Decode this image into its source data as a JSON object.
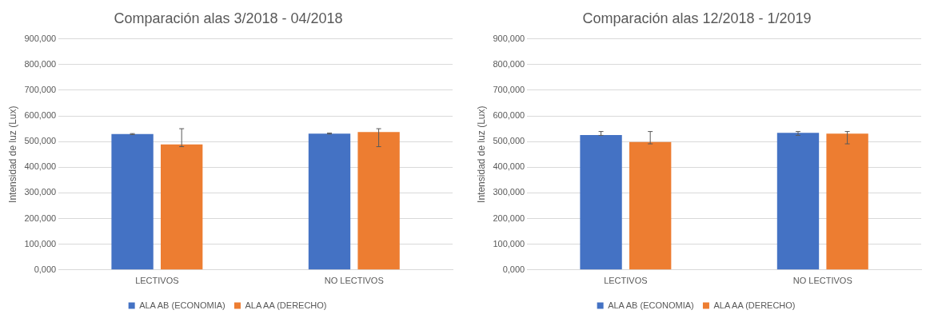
{
  "chart_data": [
    {
      "type": "bar",
      "title": "Comparación alas 3/2018 - 04/2018",
      "ylabel": "Intensidad de luz (Lux)",
      "categories": [
        "LECTIVOS",
        "NO LECTIVOS"
      ],
      "series": [
        {
          "name": "ALA AB (ECONOMIA)",
          "color": "#4472c4",
          "values": [
            529,
            531
          ],
          "errors": [
            2,
            2
          ]
        },
        {
          "name": "ALA AA (DERECHO)",
          "color": "#ed7d31",
          "values": [
            489,
            537
          ],
          "errors": [
            [
              480,
              550
            ],
            [
              480,
              550
            ]
          ]
        }
      ],
      "ylim": [
        0,
        900
      ],
      "yticks": [
        {
          "value": 0,
          "label": "0,000"
        },
        {
          "value": 100,
          "label": "100,000"
        },
        {
          "value": 200,
          "label": "200,000"
        },
        {
          "value": 300,
          "label": "300,000"
        },
        {
          "value": 400,
          "label": "400,000"
        },
        {
          "value": 500,
          "label": "500,000"
        },
        {
          "value": 600,
          "label": "600,000"
        },
        {
          "value": 700,
          "label": "700,000"
        },
        {
          "value": 800,
          "label": "800,000"
        },
        {
          "value": 900,
          "label": "900,000"
        }
      ],
      "grid": "y",
      "legend": "bottom"
    },
    {
      "type": "bar",
      "title": "Comparación alas 12/2018 - 1/2019",
      "ylabel": "Intensidad de luz (Lux)",
      "categories": [
        "LECTIVOS",
        "NO LECTIVOS"
      ],
      "series": [
        {
          "name": "ALA AB (ECONOMIA)",
          "color": "#4472c4",
          "values": [
            525,
            534
          ],
          "errors": [
            [
              524,
              539
            ],
            [
              524,
              539
            ]
          ]
        },
        {
          "name": "ALA AA (DERECHO)",
          "color": "#ed7d31",
          "values": [
            498,
            531
          ],
          "errors": [
            [
              491,
              539
            ],
            [
              491,
              539
            ]
          ]
        }
      ],
      "ylim": [
        0,
        900
      ],
      "yticks": [
        {
          "value": 0,
          "label": "0,000"
        },
        {
          "value": 100,
          "label": "100,000"
        },
        {
          "value": 200,
          "label": "200,000"
        },
        {
          "value": 300,
          "label": "300,000"
        },
        {
          "value": 400,
          "label": "400,000"
        },
        {
          "value": 500,
          "label": "500,000"
        },
        {
          "value": 600,
          "label": "600,000"
        },
        {
          "value": 700,
          "label": "700,000"
        },
        {
          "value": 800,
          "label": "800,000"
        },
        {
          "value": 900,
          "label": "900,000"
        }
      ],
      "grid": "y",
      "legend": "bottom"
    }
  ]
}
